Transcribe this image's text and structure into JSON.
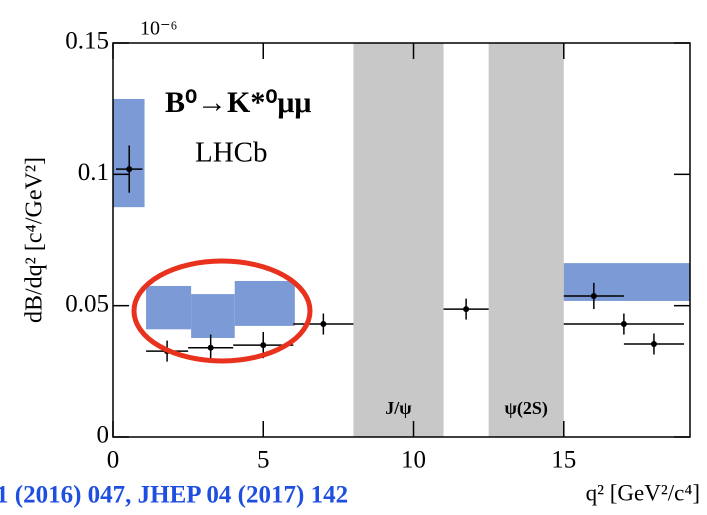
{
  "chart_data": {
    "type": "scatter",
    "title": "B⁰→K*⁰μμ",
    "subtitle": "LHCb",
    "y_label": "dB/dq² [c⁴/GeV²]",
    "x_label": "q² [GeV²/c⁴]",
    "y_multiplier": "10⁻⁶",
    "footer": "1 (2016) 047, JHEP 04 (2017) 142",
    "xlim": [
      0,
      19.2
    ],
    "ylim": [
      0,
      0.15
    ],
    "xticks": [
      0,
      5,
      10,
      15
    ],
    "yticks": [
      0,
      0.05,
      {
        "value": 0.1,
        "label": "0.1"
      },
      0.15
    ],
    "series": [
      {
        "color": "#000000",
        "x": [
          0.54,
          1.8,
          3.25,
          5,
          7,
          11.75,
          16,
          17,
          18
        ],
        "x_bins": [
          [
            0.1,
            0.98
          ],
          [
            1.1,
            2.5
          ],
          [
            2.5,
            4
          ],
          [
            4,
            6
          ],
          [
            6,
            8
          ],
          [
            11,
            12.5
          ],
          [
            15,
            17
          ],
          [
            15,
            19
          ],
          [
            17,
            19
          ]
        ],
        "values": [
          0.102,
          0.0327,
          0.034,
          0.035,
          0.043,
          0.0487,
          0.0537,
          0.043,
          0.0354
        ],
        "yerr": [
          0.009,
          0.004,
          0.005,
          0.005,
          0.004,
          0.004,
          0.005,
          0.004,
          0.004
        ]
      }
    ],
    "bands": {
      "color": "#7b9ad6",
      "boxes": [
        {
          "x": [
            0,
            1.05
          ],
          "y": [
            0.0875,
            0.1287
          ]
        },
        {
          "x": [
            1.1,
            2.6
          ],
          "y": [
            0.041,
            0.0575
          ]
        },
        {
          "x": [
            2.6,
            4.05
          ],
          "y": [
            0.0377,
            0.0544
          ]
        },
        {
          "x": [
            4.05,
            6.05
          ],
          "y": [
            0.0423,
            0.0594
          ]
        },
        {
          "x": [
            15,
            19.2
          ],
          "y": [
            0.0518,
            0.0662
          ]
        }
      ]
    },
    "vetoes": {
      "color": "#c8c8c8",
      "regions": [
        {
          "x": [
            8,
            11
          ],
          "label": "J/ψ"
        },
        {
          "x": [
            12.5,
            15
          ],
          "label": "ψ(2S)"
        }
      ]
    }
  }
}
